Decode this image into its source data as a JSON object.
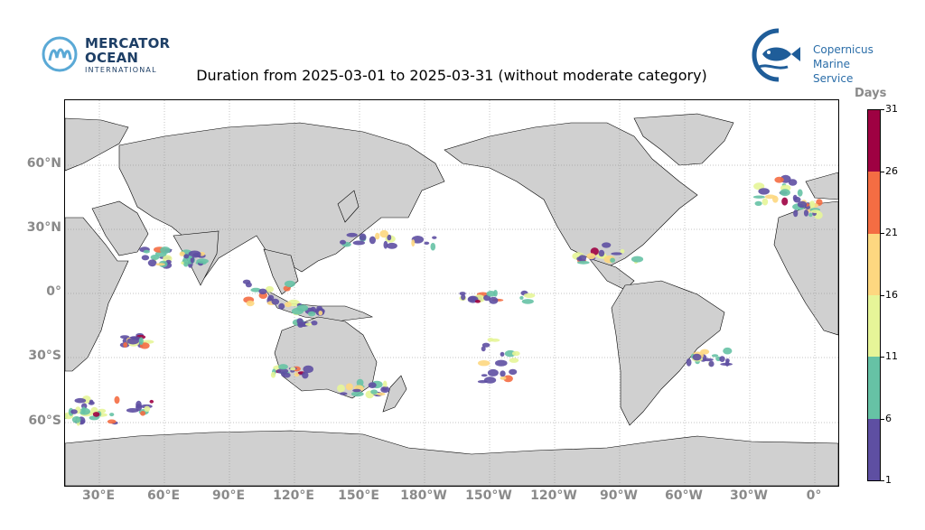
{
  "header": {
    "title": "Duration from 2025-03-01 to 2025-03-31 (without moderate category)"
  },
  "logos": {
    "left": {
      "line1": "MERCATOR",
      "line2": "OCEAN",
      "line3": "INTERNATIONAL",
      "icon": "mercator-ocean-icon"
    },
    "right": {
      "line1": "Copernicus",
      "line2": "Marine Service",
      "icon": "copernicus-fish-icon"
    }
  },
  "map": {
    "projection": "plate-carree",
    "lon_ticks": [
      "30°E",
      "60°E",
      "90°E",
      "120°E",
      "150°E",
      "180°W",
      "150°W",
      "120°W",
      "90°W",
      "60°W",
      "30°W",
      "0°"
    ],
    "lat_ticks": [
      "60°N",
      "30°N",
      "0°",
      "30°S",
      "60°S"
    ],
    "colors": {
      "land": "#d0d0d0",
      "ocean": "#ffffff",
      "coast": "#000000",
      "grid": "#888888"
    }
  },
  "colorbar": {
    "title": "Days",
    "ticks": [
      "31",
      "26",
      "21",
      "16",
      "11",
      "6",
      "1"
    ],
    "segments": [
      {
        "range": "26-31",
        "color": "#9e0142"
      },
      {
        "range": "21-26",
        "color": "#f46d43"
      },
      {
        "range": "16-21",
        "color": "#fdd780"
      },
      {
        "range": "11-16",
        "color": "#e6f598"
      },
      {
        "range": "6-11",
        "color": "#66c2a5"
      },
      {
        "range": "1-6",
        "color": "#5e4fa2"
      }
    ]
  }
}
